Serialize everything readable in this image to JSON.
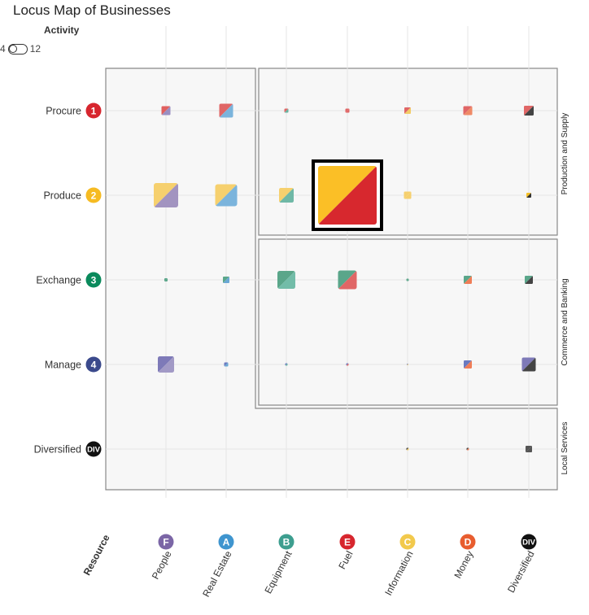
{
  "title": "Locus Map of Businesses",
  "activity": {
    "label": "Activity",
    "min_label": "4",
    "max_label": "12"
  },
  "chart_data": {
    "type": "heatmap",
    "title": "Locus Map of Businesses",
    "x_axis_title": "Resource",
    "rows": [
      {
        "label": "Procure",
        "badge": "1",
        "color": "#d7262e"
      },
      {
        "label": "Produce",
        "badge": "2",
        "color": "#f6bb22"
      },
      {
        "label": "Exchange",
        "badge": "3",
        "color": "#0a8a5c"
      },
      {
        "label": "Manage",
        "badge": "4",
        "color": "#3b4a8c"
      },
      {
        "label": "Diversified",
        "badge": "DIV",
        "color": "#111111"
      }
    ],
    "columns": [
      {
        "label": "People",
        "badge": "F",
        "color": "#7b66a6"
      },
      {
        "label": "Real Estate",
        "badge": "A",
        "color": "#3f95cf"
      },
      {
        "label": "Equipment",
        "badge": "B",
        "color": "#3d9e8f"
      },
      {
        "label": "Fuel",
        "badge": "E",
        "color": "#d7262e"
      },
      {
        "label": "Information",
        "badge": "C",
        "color": "#f2c94c"
      },
      {
        "label": "Money",
        "badge": "D",
        "color": "#e85d2f"
      },
      {
        "label": "Diversified",
        "badge": "DIV",
        "color": "#111111"
      }
    ],
    "regions": [
      {
        "label": "Production and Supply"
      },
      {
        "label": "Commerce and Banking"
      },
      {
        "label": "Local Services"
      }
    ],
    "cells": [
      {
        "row": 0,
        "col": 0,
        "size": 11,
        "c1": "#e0605f",
        "c2": "#9a8fc2"
      },
      {
        "row": 0,
        "col": 1,
        "size": 17,
        "c1": "#e06666",
        "c2": "#7bb4dc"
      },
      {
        "row": 0,
        "col": 2,
        "size": 5,
        "c1": "#e06666",
        "c2": "#66b3a0"
      },
      {
        "row": 0,
        "col": 3,
        "size": 5,
        "c1": "#e06666",
        "c2": "#e06666"
      },
      {
        "row": 0,
        "col": 4,
        "size": 8,
        "c1": "#e06666",
        "c2": "#f2cc66"
      },
      {
        "row": 0,
        "col": 5,
        "size": 11,
        "c1": "#e06666",
        "c2": "#ef8a66"
      },
      {
        "row": 0,
        "col": 6,
        "size": 12,
        "c1": "#e06666",
        "c2": "#444444"
      },
      {
        "row": 1,
        "col": 0,
        "size": 30,
        "c1": "#f6d06e",
        "c2": "#a294c0"
      },
      {
        "row": 1,
        "col": 1,
        "size": 27,
        "c1": "#f6d06e",
        "c2": "#7bb4dc"
      },
      {
        "row": 1,
        "col": 2,
        "size": 18,
        "c1": "#f6d06e",
        "c2": "#6fb8a6"
      },
      {
        "row": 1,
        "col": 3,
        "size": 72,
        "c1": "#fbbf26",
        "c2": "#d7282e"
      },
      {
        "row": 1,
        "col": 4,
        "size": 9,
        "c1": "#f6d06e",
        "c2": "#f6d06e"
      },
      {
        "row": 1,
        "col": 6,
        "size": 6,
        "c1": "#f6c026",
        "c2": "#333333"
      },
      {
        "row": 2,
        "col": 0,
        "size": 4,
        "c1": "#5aa68a",
        "c2": "#5aa68a"
      },
      {
        "row": 2,
        "col": 1,
        "size": 8,
        "c1": "#5aa68a",
        "c2": "#6aa8d4"
      },
      {
        "row": 2,
        "col": 2,
        "size": 22,
        "c1": "#5aa68a",
        "c2": "#72bca8"
      },
      {
        "row": 2,
        "col": 3,
        "size": 23,
        "c1": "#5aa68a",
        "c2": "#e06666"
      },
      {
        "row": 2,
        "col": 4,
        "size": 3,
        "c1": "#5aa68a",
        "c2": "#5aa68a"
      },
      {
        "row": 2,
        "col": 5,
        "size": 10,
        "c1": "#5aa68a",
        "c2": "#ef7d57"
      },
      {
        "row": 2,
        "col": 6,
        "size": 10,
        "c1": "#5aa68a",
        "c2": "#444444"
      },
      {
        "row": 3,
        "col": 0,
        "size": 20,
        "c1": "#7e7ab8",
        "c2": "#a29ac6"
      },
      {
        "row": 3,
        "col": 1,
        "size": 5,
        "c1": "#6a7ac0",
        "c2": "#6aa8d4"
      },
      {
        "row": 3,
        "col": 2,
        "size": 3,
        "c1": "#6a7ac0",
        "c2": "#66b3a0"
      },
      {
        "row": 3,
        "col": 3,
        "size": 3,
        "c1": "#6a7ac0",
        "c2": "#e06666"
      },
      {
        "row": 3,
        "col": 4,
        "size": 2,
        "c1": "#6a7ac0",
        "c2": "#f2cc66"
      },
      {
        "row": 3,
        "col": 5,
        "size": 10,
        "c1": "#6a7ac0",
        "c2": "#ef7d57"
      },
      {
        "row": 3,
        "col": 6,
        "size": 17,
        "c1": "#7e7ab8",
        "c2": "#444444"
      },
      {
        "row": 4,
        "col": 4,
        "size": 3,
        "c1": "#444444",
        "c2": "#f2cc66"
      },
      {
        "row": 4,
        "col": 5,
        "size": 3,
        "c1": "#444444",
        "c2": "#ef7d57"
      },
      {
        "row": 4,
        "col": 6,
        "size": 8,
        "c1": "#555555",
        "c2": "#555555"
      }
    ],
    "highlight": {
      "row": 1,
      "col": 3
    },
    "grid": true
  }
}
